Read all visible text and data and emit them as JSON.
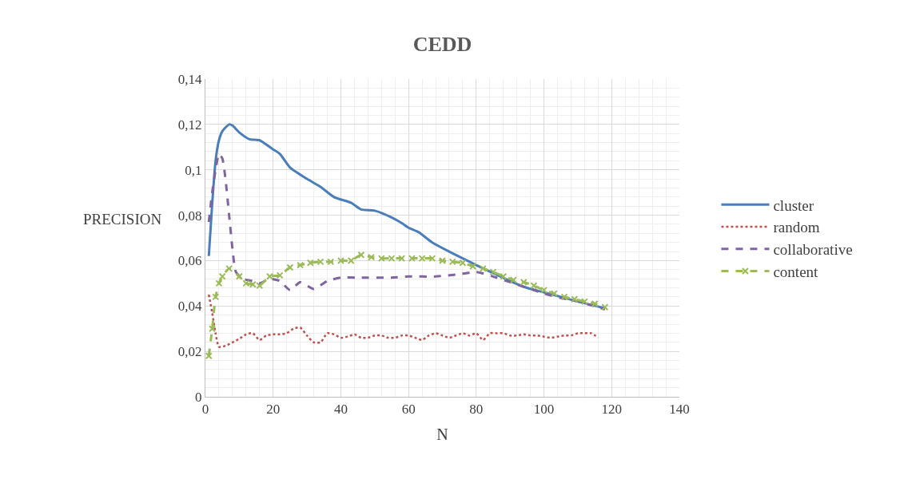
{
  "chart_data": {
    "type": "line",
    "title": "CEDD",
    "xlabel": "N",
    "ylabel": "PRECISION",
    "xlim": [
      0,
      140
    ],
    "xticks": [
      0,
      20,
      40,
      60,
      80,
      100,
      120,
      140
    ],
    "ylim": [
      0,
      0.14
    ],
    "yticks": [
      0,
      {
        "value": 0.02,
        "label": "0,02"
      },
      {
        "value": 0.04,
        "label": "0,04"
      },
      {
        "value": 0.06,
        "label": "0,06"
      },
      {
        "value": 0.08,
        "label": "0,08"
      },
      {
        "value": 0.1,
        "label": "0,1"
      },
      {
        "value": 0.12,
        "label": "0,12"
      },
      {
        "value": 0.14,
        "label": "0,14"
      }
    ],
    "grid": true,
    "legend": "right",
    "series": [
      {
        "name": "cluster",
        "color": "#4a7ebb",
        "line_style": "solid",
        "marker": "none",
        "x": [
          1,
          2,
          3,
          4,
          5,
          7,
          8,
          10,
          13,
          16,
          20,
          22,
          25,
          30,
          34,
          38,
          43,
          46,
          50,
          55,
          58,
          60,
          63,
          67,
          72,
          76,
          80,
          85,
          90,
          95,
          100,
          105,
          110,
          118
        ],
        "values": [
          0.062,
          0.085,
          0.104,
          0.113,
          0.117,
          0.12,
          0.1195,
          0.1165,
          0.1135,
          0.113,
          0.109,
          0.107,
          0.101,
          0.096,
          0.0925,
          0.088,
          0.0855,
          0.0825,
          0.082,
          0.079,
          0.0765,
          0.0745,
          0.0725,
          0.068,
          0.064,
          0.061,
          0.058,
          0.0545,
          0.051,
          0.048,
          0.046,
          0.044,
          0.042,
          0.039
        ]
      },
      {
        "name": "random",
        "color": "#c0504d",
        "line_style": "dotted",
        "marker": "none",
        "x": [
          1,
          2,
          3,
          4,
          6,
          8,
          10,
          12,
          14,
          16,
          18,
          20,
          22,
          24,
          26,
          28,
          30,
          32,
          34,
          36,
          38,
          40,
          42,
          44,
          46,
          48,
          50,
          52,
          54,
          56,
          58,
          60,
          62,
          64,
          66,
          68,
          70,
          72,
          74,
          76,
          78,
          80,
          82,
          84,
          86,
          88,
          90,
          92,
          94,
          96,
          98,
          100,
          102,
          104,
          106,
          108,
          110,
          112,
          114,
          116
        ],
        "values": [
          0.045,
          0.037,
          0.028,
          0.022,
          0.0225,
          0.024,
          0.0255,
          0.0275,
          0.028,
          0.025,
          0.027,
          0.0275,
          0.0275,
          0.028,
          0.03,
          0.0305,
          0.027,
          0.024,
          0.024,
          0.028,
          0.0275,
          0.026,
          0.0265,
          0.0275,
          0.026,
          0.026,
          0.027,
          0.027,
          0.026,
          0.026,
          0.027,
          0.027,
          0.026,
          0.025,
          0.027,
          0.028,
          0.027,
          0.026,
          0.027,
          0.028,
          0.027,
          0.028,
          0.025,
          0.028,
          0.028,
          0.028,
          0.027,
          0.027,
          0.0275,
          0.027,
          0.027,
          0.0265,
          0.026,
          0.0265,
          0.027,
          0.027,
          0.028,
          0.028,
          0.028,
          0.026
        ]
      },
      {
        "name": "collaborative",
        "color": "#8064a2",
        "line_style": "dashed",
        "marker": "none",
        "x": [
          1,
          2,
          3,
          4,
          5,
          6,
          7,
          8,
          9,
          11,
          14,
          16,
          19,
          22,
          25,
          28,
          32,
          36,
          40,
          45,
          55,
          60,
          68,
          75,
          80,
          85,
          90,
          95,
          100,
          105,
          110,
          118
        ],
        "values": [
          0.077,
          0.09,
          0.1,
          0.107,
          0.105,
          0.095,
          0.08,
          0.065,
          0.055,
          0.052,
          0.051,
          0.05,
          0.052,
          0.051,
          0.047,
          0.0505,
          0.0475,
          0.051,
          0.0525,
          0.0525,
          0.0525,
          0.053,
          0.053,
          0.054,
          0.055,
          0.053,
          0.0505,
          0.048,
          0.0455,
          0.0435,
          0.042,
          0.0385
        ]
      },
      {
        "name": "content",
        "color": "#9bbb59",
        "line_style": "dashed",
        "marker": "cross",
        "x": [
          1,
          2,
          3,
          4,
          5,
          7,
          10,
          12,
          14,
          16,
          19,
          22,
          25,
          28,
          31,
          34,
          37,
          40,
          43,
          46,
          49,
          52,
          55,
          58,
          61,
          64,
          67,
          70,
          73,
          76,
          79,
          82,
          85,
          88,
          91,
          94,
          97,
          100,
          103,
          106,
          109,
          112,
          115,
          118
        ],
        "values": [
          0.018,
          0.03,
          0.044,
          0.05,
          0.053,
          0.0565,
          0.053,
          0.05,
          0.0495,
          0.049,
          0.053,
          0.0535,
          0.057,
          0.058,
          0.059,
          0.0595,
          0.0595,
          0.06,
          0.06,
          0.0625,
          0.0615,
          0.061,
          0.061,
          0.061,
          0.061,
          0.061,
          0.061,
          0.06,
          0.0595,
          0.059,
          0.0575,
          0.0565,
          0.055,
          0.053,
          0.0515,
          0.0505,
          0.049,
          0.047,
          0.0455,
          0.044,
          0.043,
          0.042,
          0.041,
          0.0395
        ]
      }
    ]
  }
}
